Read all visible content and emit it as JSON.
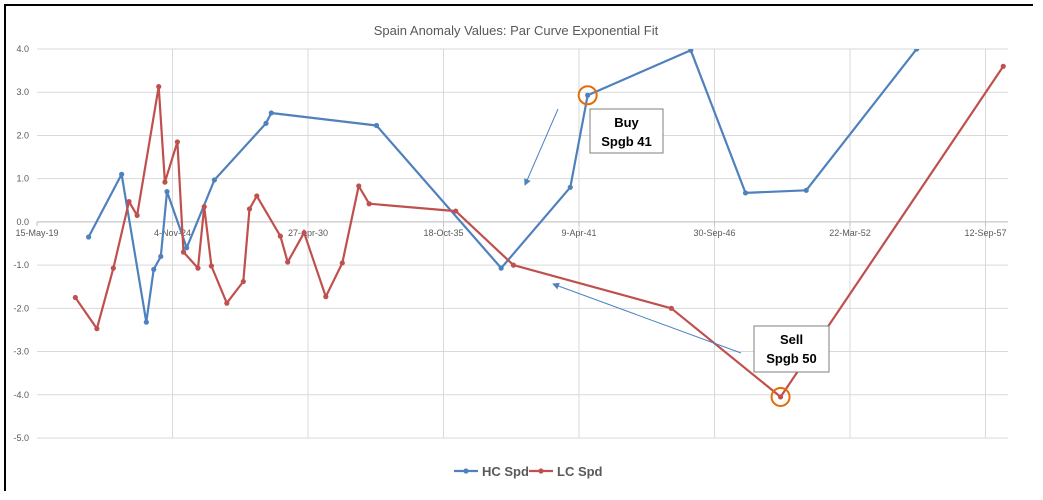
{
  "chart_data": {
    "type": "line",
    "title": "Spain Anomaly Values: Par Curve Exponential Fit",
    "xlabel": "",
    "ylabel": "",
    "x_tick_labels": [
      "15-May-19",
      "4-Nov-24",
      "27-Apr-30",
      "18-Oct-35",
      "9-Apr-41",
      "30-Sep-46",
      "22-Mar-52",
      "12-Sep-57"
    ],
    "y_tick_labels": [
      "4.0",
      "3.0",
      "2.0",
      "1.0",
      "0.0",
      "-1.0",
      "-2.0",
      "-3.0",
      "-4.0",
      "-5.0"
    ],
    "ylim": [
      -5,
      4
    ],
    "x_axis_crosses_at_y": 0,
    "grid": true,
    "legend_position": "bottom",
    "series": [
      {
        "name": "HC Spd",
        "color": "#4f81bd",
        "points": [
          [
            "2021-06-15",
            -0.35
          ],
          [
            "2022-10-15",
            1.1
          ],
          [
            "2023-10-15",
            -2.32
          ],
          [
            "2024-02-01",
            -1.1
          ],
          [
            "2024-05-15",
            -0.8
          ],
          [
            "2024-08-15",
            0.7
          ],
          [
            "2025-06-01",
            -0.6
          ],
          [
            "2026-07-15",
            0.97
          ],
          [
            "2028-08-15",
            2.28
          ],
          [
            "2028-11-01",
            2.52
          ],
          [
            "2033-02-01",
            2.23
          ],
          [
            "2038-02-15",
            -1.07
          ],
          [
            "2040-12-01",
            0.8
          ],
          [
            "2041-08-15",
            2.93
          ],
          [
            "2045-10-15",
            3.97
          ],
          [
            "2048-01-01",
            0.67
          ],
          [
            "2050-06-15",
            0.73
          ],
          [
            "2054-12-01",
            4.0
          ]
        ]
      },
      {
        "name": "LC Spd",
        "color": "#c0504d",
        "points": [
          [
            "2020-12-01",
            -1.75
          ],
          [
            "2021-10-15",
            -2.47
          ],
          [
            "2022-06-15",
            -1.07
          ],
          [
            "2023-02-01",
            0.47
          ],
          [
            "2023-06-01",
            0.15
          ],
          [
            "2024-04-15",
            3.13
          ],
          [
            "2024-07-15",
            0.92
          ],
          [
            "2025-01-15",
            1.85
          ],
          [
            "2025-04-15",
            -0.7
          ],
          [
            "2025-11-15",
            -1.07
          ],
          [
            "2026-02-15",
            0.35
          ],
          [
            "2026-06-01",
            -1.02
          ],
          [
            "2027-01-15",
            -1.88
          ],
          [
            "2027-09-15",
            -1.38
          ],
          [
            "2027-12-15",
            0.3
          ],
          [
            "2028-04-01",
            0.6
          ],
          [
            "2029-03-15",
            -0.33
          ],
          [
            "2029-07-01",
            -0.93
          ],
          [
            "2030-03-01",
            -0.25
          ],
          [
            "2031-01-15",
            -1.73
          ],
          [
            "2031-09-15",
            -0.95
          ],
          [
            "2032-05-15",
            0.83
          ],
          [
            "2032-10-15",
            0.42
          ],
          [
            "2036-04-15",
            0.25
          ],
          [
            "2038-08-15",
            -1.0
          ],
          [
            "2045-01-01",
            -2.0
          ],
          [
            "2049-06-01",
            -4.05
          ],
          [
            "2058-06-01",
            3.6
          ]
        ]
      }
    ],
    "annotations": [
      {
        "label": "Buy",
        "sublabel": "Spgb 41",
        "series": "HC Spd",
        "x": "2041-08-15",
        "y": 2.93
      },
      {
        "label": "Sell",
        "sublabel": "Spgb 50",
        "series": "LC Spd",
        "x": "2049-06-01",
        "y": -4.05
      }
    ],
    "marker_circle_color": "#e36c09"
  }
}
